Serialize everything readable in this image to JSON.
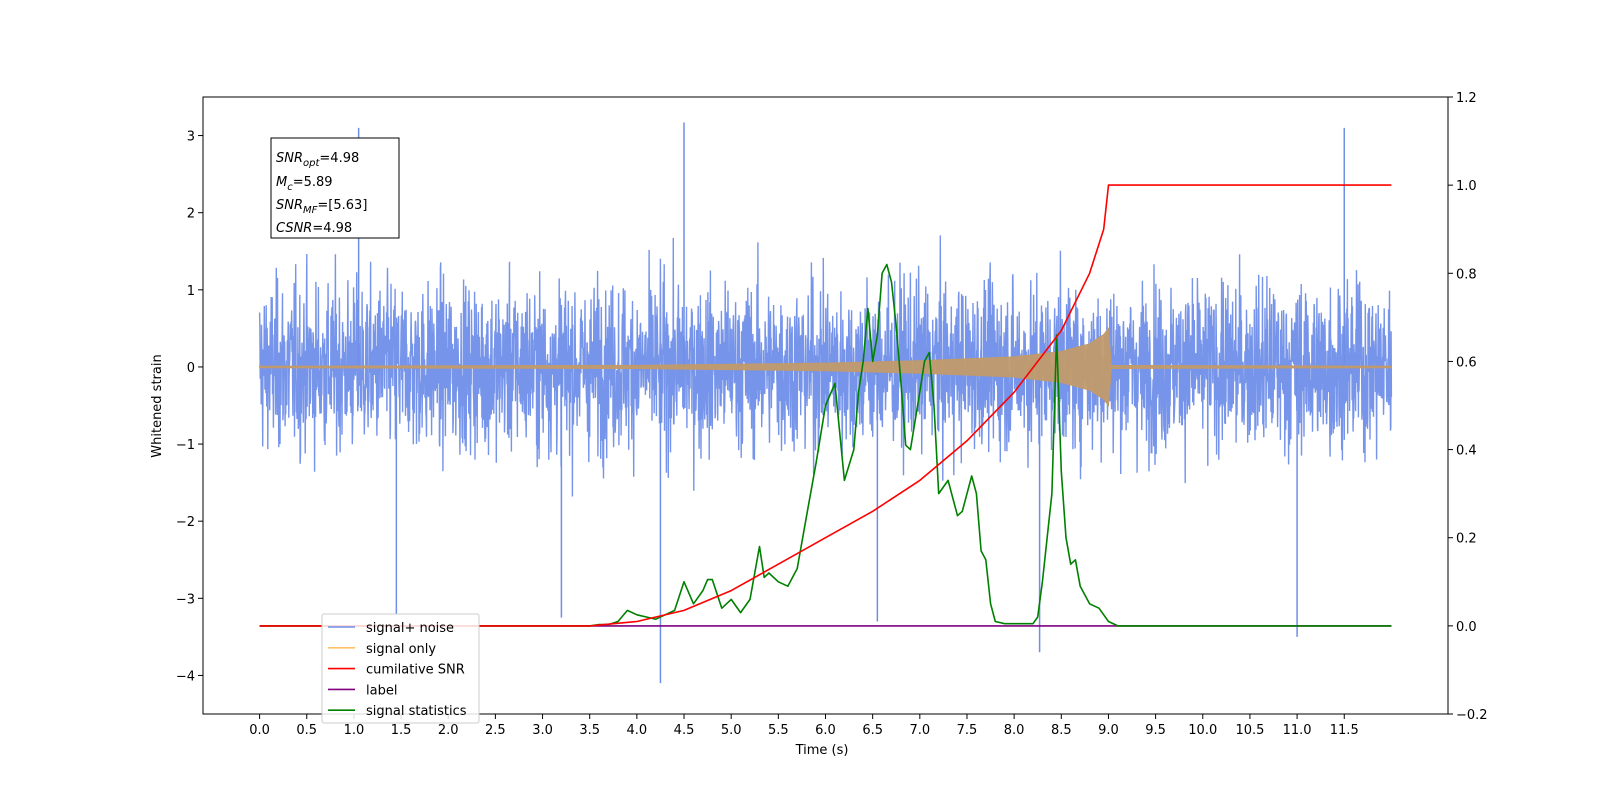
{
  "chart_data": {
    "type": "line",
    "xlabel": "Time (s)",
    "ylabel": "Whitened strain",
    "ylabel_right": "",
    "xlim": [
      -0.6,
      12.6
    ],
    "ylim": [
      -4.5,
      3.5
    ],
    "ylim_right": [
      -0.2,
      1.2
    ],
    "x_ticks": [
      "0.0",
      "0.5",
      "1.0",
      "1.5",
      "2.0",
      "2.5",
      "3.0",
      "3.5",
      "4.0",
      "4.5",
      "5.0",
      "5.5",
      "6.0",
      "6.5",
      "7.0",
      "7.5",
      "8.0",
      "8.5",
      "9.0",
      "9.5",
      "10.0",
      "10.5",
      "11.0",
      "11.5"
    ],
    "y_ticks_left": [
      "3",
      "2",
      "1",
      "0",
      "−1",
      "−2",
      "−3",
      "−4"
    ],
    "y_ticks_right": [
      "1.2",
      "1.0",
      "0.8",
      "0.6",
      "0.4",
      "0.2",
      "0.0",
      "−0.2"
    ],
    "grid": false,
    "legend_position": "bottom-left",
    "legend": [
      {
        "label": "signal+ noise",
        "color": "#6f8ee8"
      },
      {
        "label": "signal only",
        "color": "#ffc266"
      },
      {
        "label": "cumilative SNR",
        "color": "#ff0000"
      },
      {
        "label": "label",
        "color": "#800080"
      },
      {
        "label": "signal statistics",
        "color": "#008000"
      }
    ],
    "annotation": {
      "snr_opt": {
        "base": "SNR",
        "sub": "opt",
        "value": "=4.98"
      },
      "mc": {
        "base": "M",
        "sub": "c",
        "value": "=5.89"
      },
      "snr_mf": {
        "base": "SNR",
        "sub": "MF",
        "value": "=[5.63]"
      },
      "csnr": {
        "base": "CSNR",
        "sub": "",
        "value": "=4.98"
      }
    },
    "series": [
      {
        "name": "signal+ noise",
        "axis": "left",
        "color": "#6f8ee8",
        "description": "dense whitened noise, amplitude roughly ±2.5 with spikes to +3.1 and −4.1",
        "x_range": [
          0.0,
          12.0
        ],
        "spikes": [
          [
            1.05,
            3.1
          ],
          [
            4.5,
            3.17
          ],
          [
            11.5,
            3.1
          ],
          [
            4.25,
            -4.1
          ],
          [
            8.27,
            -3.7
          ],
          [
            11.0,
            -3.5
          ],
          [
            3.2,
            -3.25
          ],
          [
            1.45,
            -3.2
          ],
          [
            6.55,
            -3.3
          ]
        ]
      },
      {
        "name": "signal only",
        "axis": "left",
        "color": "#c19a6b",
        "description": "chirp envelope growing until merger at 9.0 s",
        "envelope": [
          [
            0.0,
            0.01
          ],
          [
            4.0,
            0.02
          ],
          [
            6.0,
            0.05
          ],
          [
            7.0,
            0.08
          ],
          [
            8.0,
            0.13
          ],
          [
            8.5,
            0.2
          ],
          [
            8.8,
            0.3
          ],
          [
            8.95,
            0.42
          ],
          [
            9.0,
            0.5
          ],
          [
            9.03,
            0.02
          ],
          [
            12.0,
            0.01
          ]
        ]
      },
      {
        "name": "cumilative SNR",
        "axis": "right",
        "color": "#ff0000",
        "points": [
          [
            0.0,
            0.0
          ],
          [
            3.5,
            0.0
          ],
          [
            4.0,
            0.01
          ],
          [
            4.5,
            0.035
          ],
          [
            5.0,
            0.08
          ],
          [
            5.5,
            0.14
          ],
          [
            6.0,
            0.2
          ],
          [
            6.5,
            0.26
          ],
          [
            7.0,
            0.33
          ],
          [
            7.5,
            0.42
          ],
          [
            8.0,
            0.53
          ],
          [
            8.5,
            0.67
          ],
          [
            8.8,
            0.8
          ],
          [
            8.95,
            0.9
          ],
          [
            9.0,
            1.0
          ],
          [
            12.0,
            1.0
          ]
        ]
      },
      {
        "name": "label",
        "axis": "right",
        "color": "#800080",
        "points": [
          [
            0.0,
            0.0
          ],
          [
            12.0,
            0.0
          ]
        ]
      },
      {
        "name": "signal statistics",
        "axis": "right",
        "color": "#008000",
        "points": [
          [
            0.0,
            0.0
          ],
          [
            3.5,
            0.0
          ],
          [
            3.6,
            0.003
          ],
          [
            3.7,
            0.003
          ],
          [
            3.8,
            0.01
          ],
          [
            3.9,
            0.035
          ],
          [
            4.0,
            0.025
          ],
          [
            4.1,
            0.02
          ],
          [
            4.2,
            0.015
          ],
          [
            4.3,
            0.025
          ],
          [
            4.4,
            0.035
          ],
          [
            4.5,
            0.1
          ],
          [
            4.6,
            0.05
          ],
          [
            4.7,
            0.08
          ],
          [
            4.75,
            0.105
          ],
          [
            4.8,
            0.105
          ],
          [
            4.9,
            0.04
          ],
          [
            5.0,
            0.06
          ],
          [
            5.1,
            0.03
          ],
          [
            5.2,
            0.06
          ],
          [
            5.3,
            0.18
          ],
          [
            5.35,
            0.11
          ],
          [
            5.4,
            0.12
          ],
          [
            5.5,
            0.1
          ],
          [
            5.6,
            0.09
          ],
          [
            5.7,
            0.13
          ],
          [
            5.8,
            0.25
          ],
          [
            5.9,
            0.37
          ],
          [
            6.0,
            0.5
          ],
          [
            6.1,
            0.55
          ],
          [
            6.2,
            0.33
          ],
          [
            6.3,
            0.4
          ],
          [
            6.35,
            0.53
          ],
          [
            6.4,
            0.6
          ],
          [
            6.45,
            0.72
          ],
          [
            6.5,
            0.6
          ],
          [
            6.55,
            0.66
          ],
          [
            6.6,
            0.8
          ],
          [
            6.65,
            0.82
          ],
          [
            6.7,
            0.78
          ],
          [
            6.75,
            0.68
          ],
          [
            6.8,
            0.55
          ],
          [
            6.85,
            0.41
          ],
          [
            6.9,
            0.4
          ],
          [
            7.0,
            0.53
          ],
          [
            7.05,
            0.6
          ],
          [
            7.1,
            0.62
          ],
          [
            7.15,
            0.5
          ],
          [
            7.2,
            0.3
          ],
          [
            7.3,
            0.33
          ],
          [
            7.4,
            0.25
          ],
          [
            7.45,
            0.26
          ],
          [
            7.5,
            0.3
          ],
          [
            7.55,
            0.34
          ],
          [
            7.6,
            0.3
          ],
          [
            7.65,
            0.17
          ],
          [
            7.7,
            0.15
          ],
          [
            7.75,
            0.05
          ],
          [
            7.8,
            0.01
          ],
          [
            7.9,
            0.005
          ],
          [
            8.2,
            0.005
          ],
          [
            8.25,
            0.02
          ],
          [
            8.3,
            0.1
          ],
          [
            8.4,
            0.3
          ],
          [
            8.45,
            0.66
          ],
          [
            8.5,
            0.35
          ],
          [
            8.55,
            0.2
          ],
          [
            8.6,
            0.14
          ],
          [
            8.65,
            0.15
          ],
          [
            8.7,
            0.09
          ],
          [
            8.8,
            0.05
          ],
          [
            8.9,
            0.04
          ],
          [
            9.0,
            0.01
          ],
          [
            9.1,
            0.0
          ],
          [
            12.0,
            0.0
          ]
        ]
      }
    ]
  }
}
